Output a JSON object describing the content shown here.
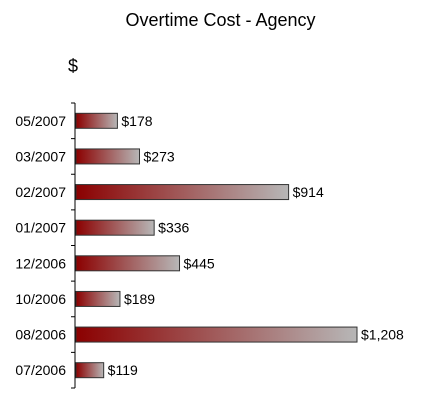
{
  "chart_data": {
    "type": "bar",
    "orientation": "horizontal",
    "title": "Overtime Cost - Agency",
    "unit_label": "$",
    "categories": [
      "05/2007",
      "03/2007",
      "02/2007",
      "01/2007",
      "12/2006",
      "10/2006",
      "08/2006",
      "07/2006"
    ],
    "values": [
      178,
      273,
      914,
      336,
      445,
      189,
      1208,
      119
    ],
    "value_labels": [
      "$178",
      "$273",
      "$914",
      "$336",
      "$445",
      "$189",
      "$1,208",
      "$119"
    ],
    "grid": false,
    "legend": "none",
    "colors": {
      "bar_dark": "#8b0000",
      "bar_light": "#b7b7b7",
      "axis": "#000000"
    }
  }
}
